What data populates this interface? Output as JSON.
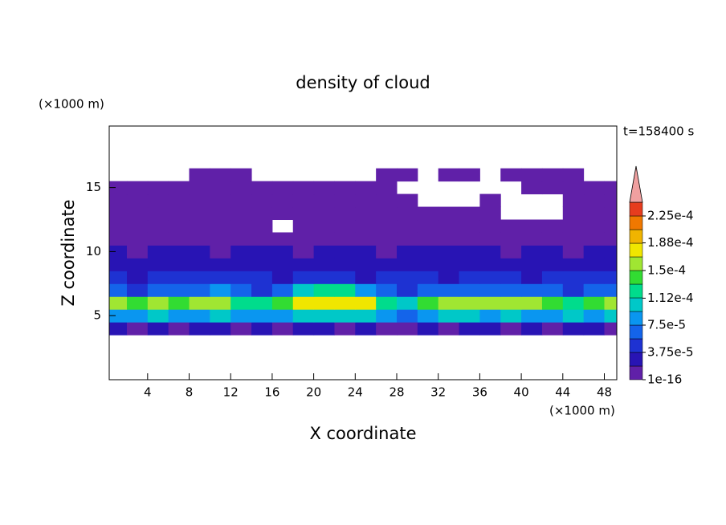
{
  "chart_data": {
    "type": "contour",
    "title": "density of cloud",
    "xlabel": "X coordinate",
    "ylabel": "Z coordinate",
    "xunit": "(×1000 m)",
    "yunit": "(×1000 m)",
    "time_label": "t=158400 s",
    "xlim": [
      0.3,
      49.2
    ],
    "ylim": [
      0,
      19.8
    ],
    "xticks": [
      4,
      8,
      12,
      16,
      20,
      24,
      28,
      32,
      36,
      40,
      44,
      48
    ],
    "yticks": [
      5,
      10,
      15
    ],
    "x": [
      1,
      3,
      5,
      7,
      9,
      11,
      13,
      15,
      17,
      19,
      21,
      23,
      25,
      27,
      29,
      31,
      33,
      35,
      37,
      39,
      41,
      43,
      45,
      47,
      49
    ],
    "z": [
      4,
      5,
      6,
      7,
      8,
      9,
      10,
      11,
      12,
      13,
      14,
      15,
      16
    ],
    "values": [
      [
        2e-05,
        1.5e-05,
        2e-05,
        1.5e-05,
        2e-05,
        2e-05,
        1.5e-05,
        2e-05,
        1.5e-05,
        2e-05,
        2e-05,
        1.5e-05,
        2e-05,
        1.5e-05,
        1e-05,
        2e-05,
        1.5e-05,
        2e-05,
        2e-05,
        1.5e-05,
        2e-05,
        1.5e-05,
        2e-05,
        2e-05,
        1.5e-05
      ],
      [
        9e-05,
        8e-05,
        9.5e-05,
        8.5e-05,
        9e-05,
        0.0001,
        9e-05,
        8e-05,
        8.5e-05,
        0.0001,
        0.000105,
        9.5e-05,
        0.0001,
        8e-05,
        7e-05,
        9e-05,
        0.0001,
        9.5e-05,
        9e-05,
        0.0001,
        8.5e-05,
        9e-05,
        9.5e-05,
        9e-05,
        0.0001
      ],
      [
        0.00016,
        0.00014,
        0.00015,
        0.000145,
        0.000155,
        0.00015,
        0.00013,
        0.000125,
        0.00014,
        0.00017,
        0.00018,
        0.000185,
        0.000175,
        0.00012,
        0.00011,
        0.00014,
        0.000155,
        0.00016,
        0.00015,
        0.00016,
        0.000155,
        0.00014,
        0.00013,
        0.000145,
        0.000165
      ],
      [
        6e-05,
        5e-05,
        6e-05,
        6.5e-05,
        7e-05,
        8e-05,
        6e-05,
        5e-05,
        6e-05,
        0.00011,
        0.00013,
        0.00012,
        9e-05,
        6e-05,
        5e-05,
        7e-05,
        6e-05,
        7e-05,
        6e-05,
        6.5e-05,
        7e-05,
        6e-05,
        5e-05,
        6e-05,
        7e-05
      ],
      [
        4e-05,
        3.5e-05,
        4e-05,
        4.5e-05,
        5e-05,
        5.5e-05,
        4.5e-05,
        4e-05,
        3.5e-05,
        4e-05,
        4.5e-05,
        4e-05,
        3.5e-05,
        4e-05,
        4.5e-05,
        4e-05,
        3.5e-05,
        4e-05,
        4.5e-05,
        4e-05,
        3.5e-05,
        4e-05,
        4e-05,
        4.5e-05,
        4e-05
      ],
      [
        3e-05,
        2.5e-05,
        3e-05,
        3e-05,
        3.5e-05,
        3e-05,
        2.5e-05,
        2.5e-05,
        3e-05,
        3e-05,
        2.5e-05,
        2.5e-05,
        3e-05,
        3e-05,
        2.5e-05,
        3e-05,
        3e-05,
        3.5e-05,
        3e-05,
        2.5e-05,
        3e-05,
        3e-05,
        2.5e-05,
        3e-05,
        3e-05
      ],
      [
        2e-05,
        1.8e-05,
        2e-05,
        2.2e-05,
        2e-05,
        1.5e-05,
        2e-05,
        2.2e-05,
        2e-05,
        1.8e-05,
        2e-05,
        2.2e-05,
        2e-05,
        1.8e-05,
        2.2e-05,
        2e-05,
        2e-05,
        2.2e-05,
        2e-05,
        1.8e-05,
        2e-05,
        2e-05,
        1.8e-05,
        2e-05,
        2e-05
      ],
      [
        1.2e-05,
        1.1e-05,
        1.2e-05,
        1.3e-05,
        1.2e-05,
        1.1e-05,
        1.2e-05,
        1.3e-05,
        1.2e-05,
        1.1e-05,
        1.2e-05,
        1.3e-05,
        1.2e-05,
        1.1e-05,
        1.2e-05,
        1.3e-05,
        1.2e-05,
        1.1e-05,
        1.2e-05,
        1.3e-05,
        1.2e-05,
        1.1e-05,
        1.2e-05,
        1.3e-05,
        1.2e-05
      ],
      [
        8e-06,
        8e-06,
        8e-06,
        8e-06,
        8e-06,
        8e-06,
        8e-06,
        8e-06,
        null,
        8e-06,
        8e-06,
        8e-06,
        8e-06,
        8e-06,
        8e-06,
        8e-06,
        8e-06,
        8e-06,
        8e-06,
        8e-06,
        8e-06,
        8e-06,
        8e-06,
        8e-06,
        8e-06
      ],
      [
        5e-06,
        5e-06,
        5e-06,
        5e-06,
        5e-06,
        5e-06,
        5e-06,
        5e-06,
        5e-06,
        5e-06,
        5e-06,
        5e-06,
        5e-06,
        5e-06,
        5e-06,
        5e-06,
        5e-06,
        5e-06,
        5e-06,
        null,
        null,
        null,
        5e-06,
        5e-06,
        5e-06
      ],
      [
        3e-06,
        3e-06,
        3e-06,
        3e-06,
        3e-06,
        3e-06,
        3e-06,
        3e-06,
        3e-06,
        3e-06,
        3e-06,
        3e-06,
        3e-06,
        3e-06,
        3e-06,
        null,
        null,
        null,
        3e-06,
        null,
        null,
        null,
        3e-06,
        3e-06,
        3e-06
      ],
      [
        2e-06,
        2e-06,
        2e-06,
        2e-06,
        2e-06,
        2e-06,
        2e-06,
        2e-06,
        2e-06,
        2e-06,
        2e-06,
        2e-06,
        2e-06,
        2e-06,
        null,
        null,
        null,
        null,
        null,
        null,
        2e-06,
        2e-06,
        2e-06,
        2e-06,
        2e-06
      ],
      [
        null,
        null,
        null,
        null,
        1e-06,
        1e-06,
        1e-06,
        null,
        null,
        null,
        null,
        null,
        null,
        1e-06,
        1e-06,
        null,
        1e-06,
        1e-06,
        null,
        1e-06,
        1e-06,
        1e-06,
        1e-06,
        null,
        null
      ]
    ],
    "levels": [
      1e-16,
      1.875e-05,
      3.75e-05,
      5.625e-05,
      7.5e-05,
      9.375e-05,
      0.0001125,
      0.00013125,
      0.00015,
      0.00016875,
      0.0001875,
      0.00020625,
      0.000225,
      0.00024375
    ],
    "colors": [
      "#6020a8",
      "#2814b4",
      "#1e32d2",
      "#1464ea",
      "#0a96f0",
      "#00c8c8",
      "#00dc8c",
      "#32dc32",
      "#a0e632",
      "#f0e600",
      "#f0b400",
      "#f07800",
      "#e63c1e"
    ],
    "extend_color": "#f0a0a0",
    "cticks": [
      1e-16,
      {
        "value": 3.75e-05,
        "label": "3.75e-5"
      },
      {
        "value": 7.5e-05,
        "label": "7.5e-5"
      },
      {
        "value": 0.000112,
        "label": "1.12e-4"
      },
      {
        "value": 0.00015,
        "label": "1.5e-4"
      },
      {
        "value": 0.000188,
        "label": "1.88e-4"
      },
      {
        "value": 0.000225,
        "label": "2.25e-4"
      }
    ]
  }
}
